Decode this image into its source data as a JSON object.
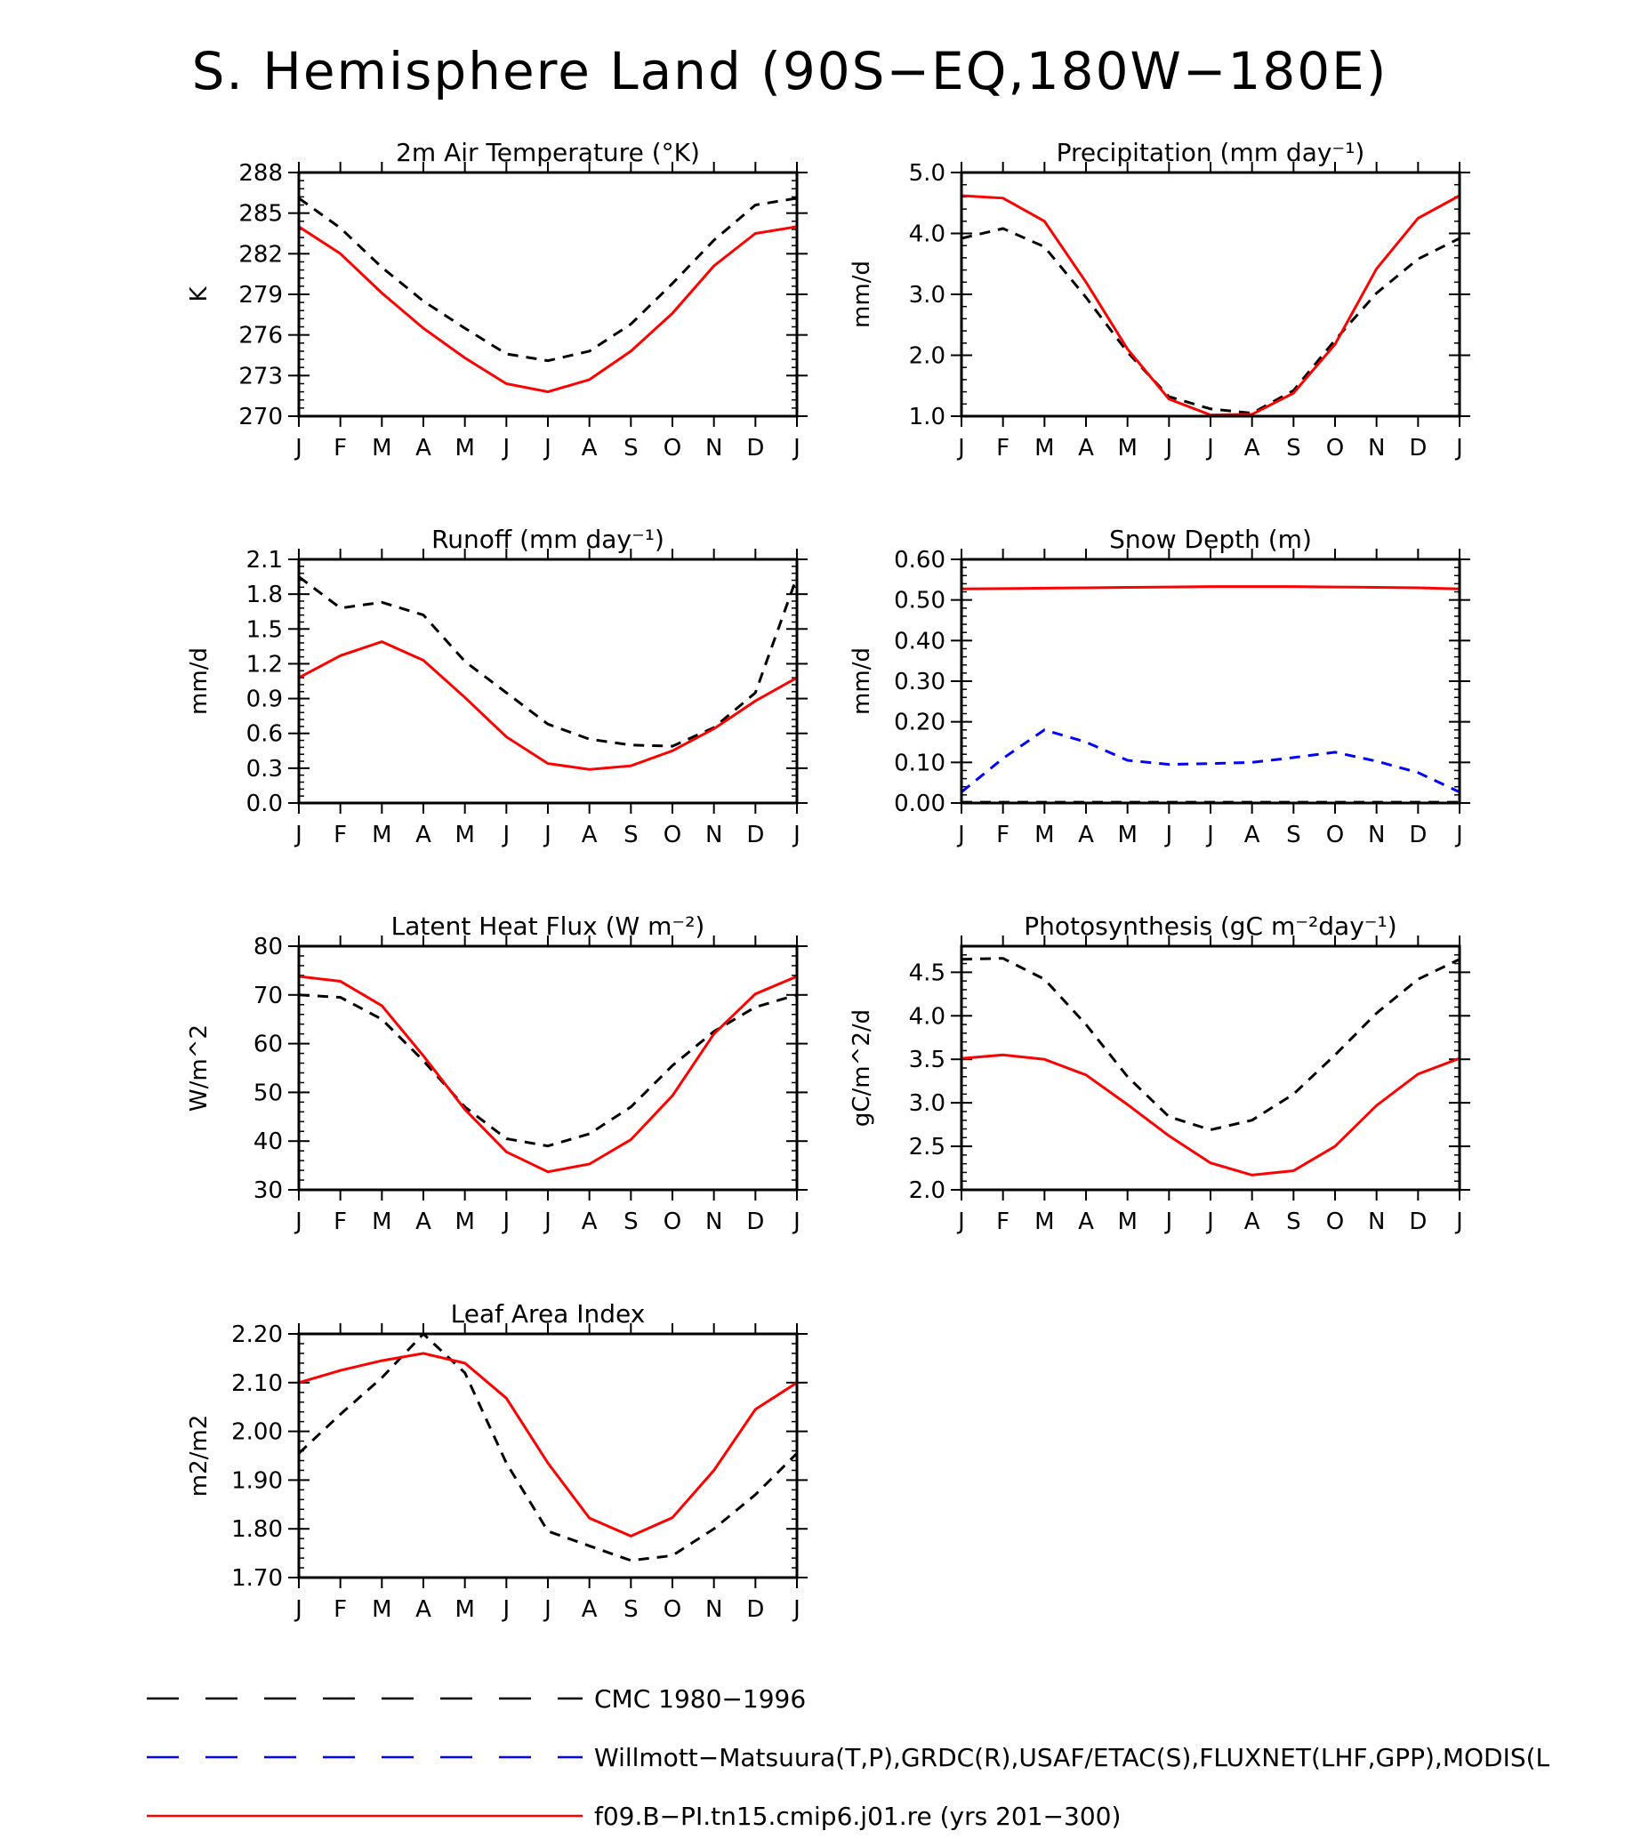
{
  "page": {
    "title": "S. Hemisphere Land (90S−EQ,180W−180E)"
  },
  "months": [
    "J",
    "F",
    "M",
    "A",
    "M",
    "J",
    "J",
    "A",
    "S",
    "O",
    "N",
    "D",
    "J"
  ],
  "legend": [
    {
      "label": "CMC 1980−1996",
      "color": "#000000",
      "style": "dash"
    },
    {
      "label": "Willmott−Matsuura(T,P),GRDC(R),USAF/ETAC(S),FLUXNET(LHF,GPP),MODIS(L",
      "color": "#0000ff",
      "style": "dash"
    },
    {
      "label": "f09.B−PI.tn15.cmip6.j01.re (yrs 201−300)",
      "color": "#ff0000",
      "style": "solid"
    }
  ],
  "chart_data": [
    {
      "type": "line",
      "title": "2m Air Temperature (°K)",
      "ylabel": "K",
      "ylim": [
        270,
        288
      ],
      "yticks": [
        "270",
        "273",
        "276",
        "279",
        "282",
        "285",
        "288"
      ],
      "series": [
        {
          "color": "#000000",
          "style": "dash",
          "values": [
            286.1,
            283.9,
            281.0,
            278.5,
            276.5,
            274.6,
            274.1,
            274.8,
            276.8,
            279.8,
            283.0,
            285.6,
            286.1
          ]
        },
        {
          "color": "#ff0000",
          "style": "solid",
          "values": [
            284.0,
            282.0,
            279.1,
            276.5,
            274.3,
            272.4,
            271.8,
            272.7,
            274.8,
            277.6,
            281.1,
            283.5,
            284.0
          ]
        }
      ]
    },
    {
      "type": "line",
      "title": "Precipitation (mm day⁻¹)",
      "ylabel": "mm/d",
      "ylim": [
        1.0,
        5.0
      ],
      "yticks": [
        "1.0",
        "2.0",
        "3.0",
        "4.0",
        "5.0"
      ],
      "series": [
        {
          "color": "#000000",
          "style": "dash",
          "values": [
            3.92,
            4.08,
            3.78,
            2.95,
            2.05,
            1.32,
            1.12,
            1.05,
            1.42,
            2.25,
            3.02,
            3.58,
            3.92
          ]
        },
        {
          "color": "#ff0000",
          "style": "solid",
          "values": [
            4.62,
            4.58,
            4.2,
            3.2,
            2.1,
            1.28,
            1.02,
            1.03,
            1.38,
            2.18,
            3.42,
            4.25,
            4.62
          ]
        }
      ]
    },
    {
      "type": "line",
      "title": "Runoff (mm day⁻¹)",
      "ylabel": "mm/d",
      "ylim": [
        0.0,
        2.1
      ],
      "yticks": [
        "0.0",
        "0.3",
        "0.6",
        "0.9",
        "1.2",
        "1.5",
        "1.8",
        "2.1"
      ],
      "series": [
        {
          "color": "#000000",
          "style": "dash",
          "values": [
            1.95,
            1.68,
            1.73,
            1.62,
            1.22,
            0.95,
            0.68,
            0.55,
            0.5,
            0.49,
            0.65,
            0.95,
            1.95
          ]
        },
        {
          "color": "#ff0000",
          "style": "solid",
          "values": [
            1.08,
            1.27,
            1.39,
            1.23,
            0.91,
            0.57,
            0.34,
            0.29,
            0.32,
            0.45,
            0.64,
            0.88,
            1.08
          ]
        }
      ]
    },
    {
      "type": "line",
      "title": "Snow Depth (m)",
      "ylabel": "mm/d",
      "ylim": [
        0.0,
        0.6
      ],
      "yticks": [
        "0.00",
        "0.10",
        "0.20",
        "0.30",
        "0.40",
        "0.50",
        "0.60"
      ],
      "series": [
        {
          "color": "#000000",
          "style": "dash",
          "values": [
            0.002,
            0.002,
            0.002,
            0.002,
            0.002,
            0.002,
            0.002,
            0.002,
            0.002,
            0.002,
            0.002,
            0.002,
            0.002
          ]
        },
        {
          "color": "#0000ff",
          "style": "dash",
          "values": [
            0.027,
            0.11,
            0.18,
            0.15,
            0.105,
            0.095,
            0.097,
            0.1,
            0.112,
            0.125,
            0.103,
            0.075,
            0.027
          ]
        },
        {
          "color": "#ff0000",
          "style": "solid",
          "values": [
            0.527,
            0.528,
            0.529,
            0.53,
            0.531,
            0.532,
            0.533,
            0.533,
            0.533,
            0.532,
            0.531,
            0.53,
            0.527
          ]
        }
      ]
    },
    {
      "type": "line",
      "title": "Latent Heat Flux (W m⁻²)",
      "ylabel": "W/m^2",
      "ylim": [
        30,
        80
      ],
      "yticks": [
        "30",
        "40",
        "50",
        "60",
        "70",
        "80"
      ],
      "series": [
        {
          "color": "#000000",
          "style": "dash",
          "values": [
            70.0,
            69.5,
            65.0,
            56.5,
            47.0,
            40.5,
            39.0,
            41.5,
            47.0,
            55.5,
            62.5,
            67.5,
            70.0
          ]
        },
        {
          "color": "#ff0000",
          "style": "solid",
          "values": [
            73.8,
            72.8,
            67.8,
            57.5,
            46.5,
            37.8,
            33.7,
            35.3,
            40.3,
            49.3,
            62.0,
            70.2,
            73.8
          ]
        }
      ]
    },
    {
      "type": "line",
      "title": "Photosynthesis (gC m⁻²day⁻¹)",
      "ylabel": "gC/m^2/d",
      "ylim": [
        2.0,
        4.8
      ],
      "yticks": [
        "2.0",
        "2.5",
        "3.0",
        "3.5",
        "4.0",
        "4.5"
      ],
      "series": [
        {
          "color": "#000000",
          "style": "dash",
          "values": [
            4.65,
            4.66,
            4.42,
            3.9,
            3.3,
            2.84,
            2.69,
            2.8,
            3.1,
            3.55,
            4.03,
            4.42,
            4.65
          ]
        },
        {
          "color": "#ff0000",
          "style": "solid",
          "values": [
            3.51,
            3.55,
            3.5,
            3.32,
            2.98,
            2.62,
            2.31,
            2.17,
            2.22,
            2.5,
            2.97,
            3.33,
            3.51
          ]
        }
      ]
    },
    {
      "type": "line",
      "title": "Leaf Area Index",
      "ylabel": "m2/m2",
      "ylim": [
        1.7,
        2.2
      ],
      "yticks": [
        "1.70",
        "1.80",
        "1.90",
        "2.00",
        "2.10",
        "2.20"
      ],
      "series": [
        {
          "color": "#000000",
          "style": "dash",
          "values": [
            1.955,
            2.035,
            2.11,
            2.2,
            2.12,
            1.935,
            1.795,
            1.765,
            1.735,
            1.745,
            1.8,
            1.87,
            1.955
          ]
        },
        {
          "color": "#ff0000",
          "style": "solid",
          "values": [
            2.1,
            2.125,
            2.145,
            2.16,
            2.14,
            2.068,
            1.935,
            1.822,
            1.785,
            1.823,
            1.92,
            2.045,
            2.1
          ]
        }
      ]
    }
  ]
}
